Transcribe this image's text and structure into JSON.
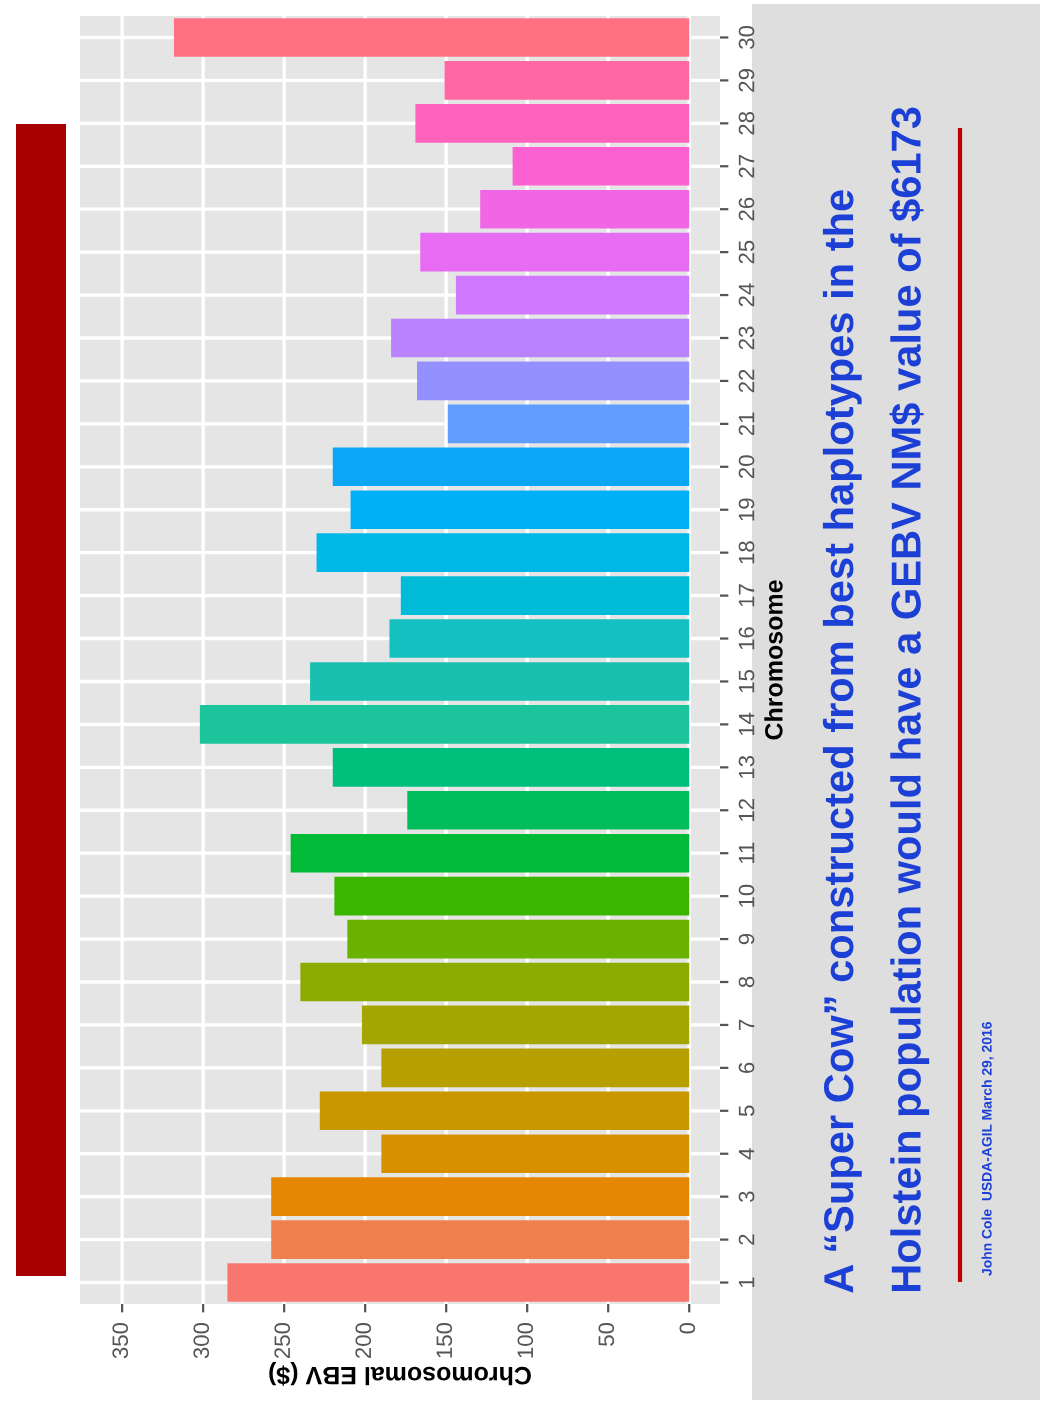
{
  "chart_data": {
    "type": "bar",
    "orientation": "horizontal",
    "title": "A “Super Cow” constructed from best haplotypes in the\nHolstein population would have a GEBV NM$ value of $6173",
    "xlabel": "Chromosomal EBV ($)",
    "ylabel": "Chromosome",
    "categories": [
      "30",
      "29",
      "28",
      "27",
      "26",
      "25",
      "24",
      "23",
      "22",
      "21",
      "20",
      "19",
      "18",
      "17",
      "16",
      "15",
      "14",
      "13",
      "12",
      "11",
      "10",
      "9",
      "8",
      "7",
      "6",
      "5",
      "4",
      "3",
      "2",
      "1"
    ],
    "values": [
      318,
      151,
      169,
      109,
      129,
      166,
      144,
      184,
      168,
      149,
      220,
      209,
      230,
      178,
      185,
      234,
      302,
      220,
      174,
      246,
      219,
      211,
      240,
      202,
      190,
      228,
      190,
      258,
      258,
      285
    ],
    "colors": [
      "#ff7083",
      "#ff67a4",
      "#ff62bc",
      "#fd61d1",
      "#f066e4",
      "#e76bf3",
      "#d078ff",
      "#b983ff",
      "#9590ff",
      "#619cff",
      "#0ca6f7",
      "#00b0f6",
      "#00b8e7",
      "#00bcd8",
      "#14c0c0",
      "#19c0b0",
      "#1bc49a",
      "#00bf7d",
      "#00bd5c",
      "#00ba38",
      "#39b600",
      "#6bb100",
      "#8cab00",
      "#a3a500",
      "#b79f00",
      "#c99800",
      "#d89000",
      "#e58700",
      "#ef7f4e",
      "#f8766d"
    ],
    "xlim": [
      376,
      -19
    ],
    "xticks": [
      0,
      50,
      100,
      150,
      200,
      250,
      300,
      350
    ],
    "grid": true,
    "annotations": [
      "John Cole  USDA-AGIL March 29, 2016"
    ]
  }
}
